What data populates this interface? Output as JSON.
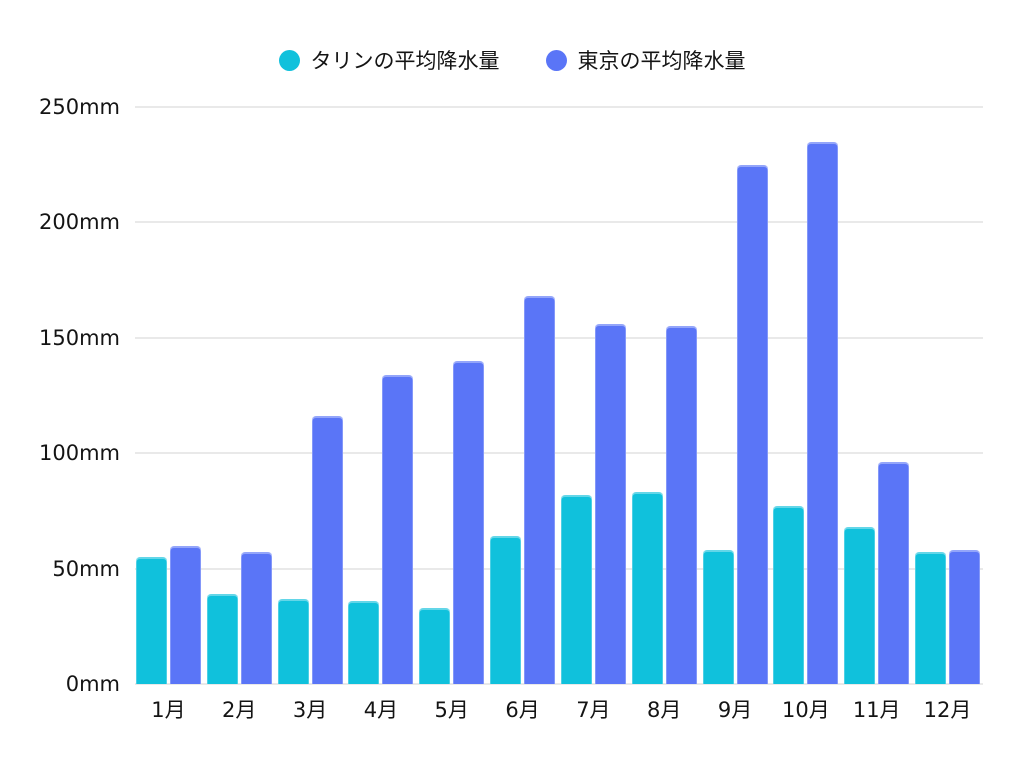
{
  "legend": {
    "items": [
      {
        "label": "タリンの平均降水量",
        "color": "#10C1DC"
      },
      {
        "label": "東京の平均降水量",
        "color": "#5A75F7"
      }
    ]
  },
  "chart_data": {
    "type": "bar",
    "title": "",
    "categories": [
      "1月",
      "2月",
      "3月",
      "4月",
      "5月",
      "6月",
      "7月",
      "8月",
      "9月",
      "10月",
      "11月",
      "12月"
    ],
    "series": [
      {
        "name": "タリンの平均降水量",
        "color": "#10C1DC",
        "values": [
          55,
          39,
          37,
          36,
          33,
          64,
          82,
          83,
          58,
          77,
          68,
          57
        ]
      },
      {
        "name": "東京の平均降水量",
        "color": "#5A75F7",
        "values": [
          60,
          57,
          116,
          134,
          140,
          168,
          156,
          155,
          225,
          235,
          96,
          58
        ]
      }
    ],
    "y_axis": {
      "unit": "mm",
      "min": 0,
      "max": 250,
      "step": 50,
      "tick_labels": [
        "0mm",
        "50mm",
        "100mm",
        "150mm",
        "200mm",
        "250mm"
      ]
    },
    "grid": true,
    "legend_position": "top",
    "background_color": "#ffffff",
    "grid_color": "#e9e9e9"
  }
}
